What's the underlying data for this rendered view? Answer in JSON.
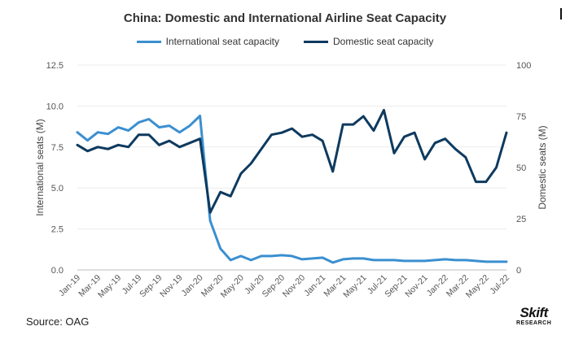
{
  "chart_data": {
    "type": "line",
    "title": "China: Domestic and International Airline Seat Capacity",
    "ylabel_left": "International seats (M)",
    "ylabel_right": "Domestic seats (M)",
    "ylim_left": [
      0,
      12.5
    ],
    "ylim_right": [
      0,
      100
    ],
    "yticks_left": [
      "0.0",
      "2.5",
      "5.0",
      "7.5",
      "10.0",
      "12.5"
    ],
    "yticks_right": [
      "0",
      "25",
      "50",
      "75",
      "100"
    ],
    "x_ticks": [
      "Jan-19",
      "Mar-19",
      "May-19",
      "Jul-19",
      "Sep-19",
      "Nov-19",
      "Jan-20",
      "Mar-20",
      "May-20",
      "Jul-20",
      "Sep-20",
      "Nov-20",
      "Jan-21",
      "Mar-21",
      "May-21",
      "Jul-21",
      "Sep-21",
      "Nov-21",
      "Jan-22",
      "Mar-22",
      "May-22",
      "Jul-22"
    ],
    "x": [
      "Jan-19",
      "Feb-19",
      "Mar-19",
      "Apr-19",
      "May-19",
      "Jun-19",
      "Jul-19",
      "Aug-19",
      "Sep-19",
      "Oct-19",
      "Nov-19",
      "Dec-19",
      "Jan-20",
      "Feb-20",
      "Mar-20",
      "Apr-20",
      "May-20",
      "Jun-20",
      "Jul-20",
      "Aug-20",
      "Sep-20",
      "Oct-20",
      "Nov-20",
      "Dec-20",
      "Jan-21",
      "Feb-21",
      "Mar-21",
      "Apr-21",
      "May-21",
      "Jun-21",
      "Jul-21",
      "Aug-21",
      "Sep-21",
      "Oct-21",
      "Nov-21",
      "Dec-21",
      "Jan-22",
      "Feb-22",
      "Mar-22",
      "Apr-22",
      "May-22",
      "Jun-22",
      "Jul-22"
    ],
    "series": [
      {
        "name": "International seat capacity",
        "axis": "left",
        "color": "#3b8fd0",
        "values": [
          8.4,
          7.9,
          8.4,
          8.3,
          8.7,
          8.5,
          9.0,
          9.2,
          8.7,
          8.8,
          8.4,
          8.8,
          9.4,
          3.0,
          1.3,
          0.6,
          0.85,
          0.6,
          0.85,
          0.85,
          0.9,
          0.85,
          0.65,
          0.7,
          0.75,
          0.45,
          0.65,
          0.7,
          0.7,
          0.6,
          0.6,
          0.6,
          0.55,
          0.55,
          0.55,
          0.6,
          0.65,
          0.6,
          0.6,
          0.55,
          0.5,
          0.5,
          0.5
        ]
      },
      {
        "name": "Domestic seat capacity",
        "axis": "right",
        "color": "#0e3a5f",
        "values": [
          61,
          58,
          60,
          59,
          61,
          60,
          66,
          66,
          61,
          63,
          60,
          62,
          64,
          28,
          38,
          36,
          47,
          52,
          59,
          66,
          67,
          69,
          65,
          66,
          63,
          48,
          71,
          71,
          75,
          68,
          78,
          57,
          65,
          67,
          54,
          62,
          64,
          59,
          55,
          43,
          43,
          50,
          67
        ]
      }
    ],
    "legend_position": "top-center",
    "grid": "horizontal"
  },
  "footer": {
    "source": "Source: OAG",
    "logo_top": "Skift",
    "logo_bottom": "RESEARCH"
  }
}
